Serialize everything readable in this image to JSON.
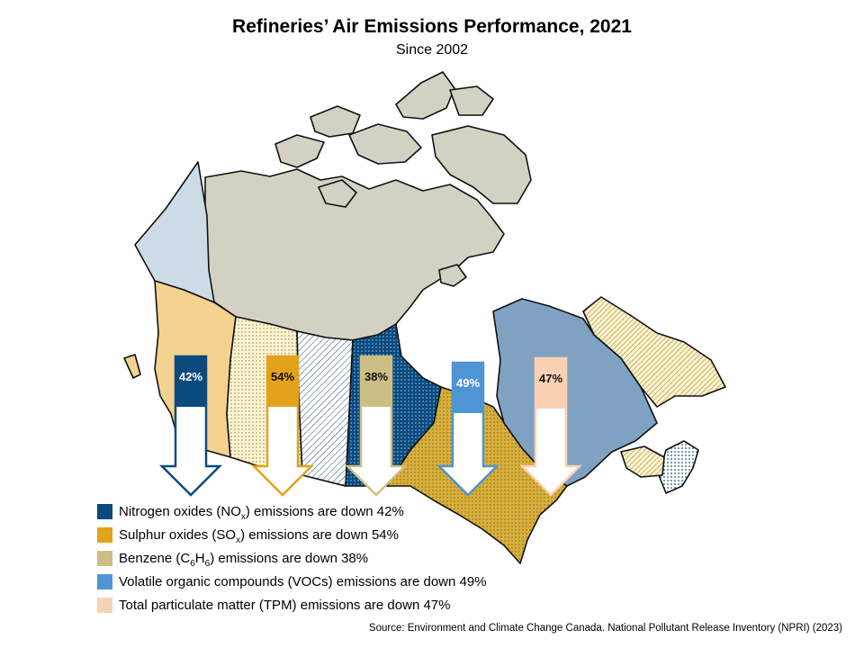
{
  "title": "Refineries’ Air Emissions Performance, 2021",
  "subtitle": "Since 2002",
  "colors": {
    "nox": "#0b4a7d",
    "sox": "#e3a21b",
    "benzene": "#cdbe84",
    "voc": "#4f95d3",
    "tpm": "#fbd1b4",
    "north": "#d3d1c3",
    "bc": "#f3d290",
    "yukon": "#cddbe7",
    "quebec": "#7fa2c2",
    "ontario": "#d8b03c"
  },
  "emissions": [
    {
      "key": "nox",
      "percent_label": "42%",
      "reduction": 42,
      "legend": {
        "before": "Nitrogen oxides (NO",
        "sub": "x",
        "after": ") emissions are down 42%"
      }
    },
    {
      "key": "sox",
      "percent_label": "54%",
      "reduction": 54,
      "legend": {
        "before": "Sulphur oxides (SO",
        "sub": "x",
        "after": ") emissions are down 54%"
      }
    },
    {
      "key": "benzene",
      "percent_label": "38%",
      "reduction": 38,
      "legend": {
        "before": "Benzene (C",
        "sub": "6",
        "mid": "H",
        "sub2": "6",
        "after": ") emissions are down 38%"
      }
    },
    {
      "key": "voc",
      "percent_label": "49%",
      "reduction": 49,
      "legend": {
        "before": "Volatile organic compounds (VOCs) emissions are down 49%"
      }
    },
    {
      "key": "tpm",
      "percent_label": "47%",
      "reduction": 47,
      "legend": {
        "before": "Total particulate matter (TPM) emissions are down 47%"
      }
    }
  ],
  "source": "Source: Environment and Climate Change Canada. National Pollutant Release Inventory (NPRI) (2023)"
}
